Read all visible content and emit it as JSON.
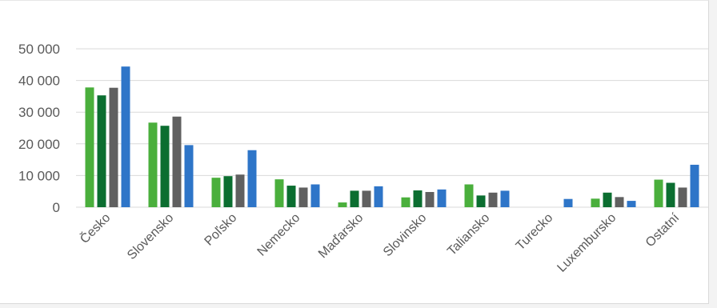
{
  "chart_data": {
    "type": "bar",
    "categories": [
      "Česko",
      "Slovensko",
      "Poľsko",
      "Nemecko",
      "Maďarsko",
      "Slovinsko",
      "Taliansko",
      "Turecko",
      "Luxembursko",
      "Ostatní"
    ],
    "series": [
      {
        "color": "#4aaf3c",
        "values": [
          37800,
          26700,
          9300,
          8800,
          1500,
          3100,
          7200,
          0,
          2700,
          8700
        ]
      },
      {
        "color": "#0b6e30",
        "values": [
          35300,
          25700,
          9800,
          6800,
          5200,
          5300,
          3700,
          0,
          4600,
          7700
        ]
      },
      {
        "color": "#606060",
        "values": [
          37700,
          28600,
          10300,
          6200,
          5200,
          4800,
          4600,
          0,
          3200,
          6200
        ]
      },
      {
        "color": "#2e75c8",
        "values": [
          44400,
          19600,
          18000,
          7200,
          6600,
          5600,
          5200,
          2600,
          2000,
          13400
        ]
      }
    ],
    "yticks": [
      "0",
      "10 000",
      "20 000",
      "30 000",
      "40 000",
      "50 000"
    ],
    "ylim": [
      0,
      50000
    ],
    "grid": true,
    "gridColor": "#d9d9d9"
  }
}
